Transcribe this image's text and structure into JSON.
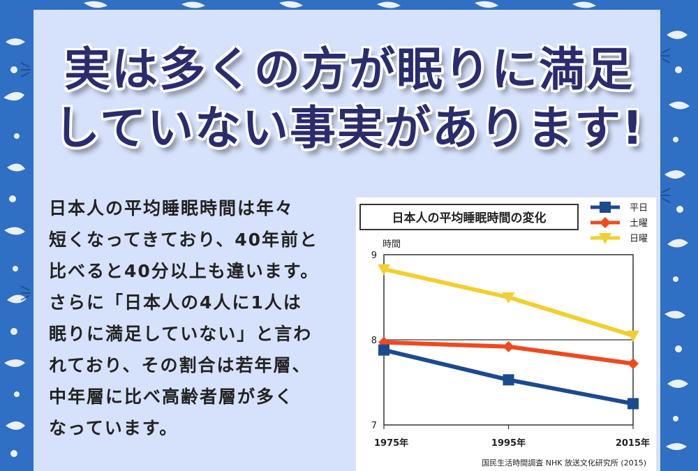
{
  "headline": {
    "line1": "実は多くの方が眠りに満足",
    "line2": "していない事実があります!"
  },
  "body": {
    "lines": [
      "日本人の平均睡眠時間は年々",
      "短くなってきており、40年前と",
      "比べると40分以上も違います。",
      "さらに「日本人の4人に1人は",
      "眠りに満足していない」と言わ",
      "れており、その割合は若年層、",
      "中年層に比べ高齢者層が多く",
      "なっています。"
    ]
  },
  "chart_data": {
    "type": "line",
    "title": "日本人の平均睡眠時間の変化",
    "ylabel": "時間",
    "xlabel": "",
    "categories": [
      "1975年",
      "1995年",
      "2015年"
    ],
    "ylim": [
      7,
      9
    ],
    "yticks": [
      "7",
      "8",
      "9"
    ],
    "grid": false,
    "legend_position": "top-right",
    "source": "国民生活時間調査 NHK 放送文化研究所 (2015)",
    "series": [
      {
        "name": "平日",
        "values": [
          7.88,
          7.53,
          7.25
        ],
        "color": "#1b4a8f",
        "marker": "square"
      },
      {
        "name": "土曜",
        "values": [
          7.97,
          7.92,
          7.72
        ],
        "color": "#ee4a1f",
        "marker": "diamond"
      },
      {
        "name": "日曜",
        "values": [
          8.83,
          8.5,
          8.05
        ],
        "color": "#f2cf30",
        "marker": "triangle-down"
      }
    ]
  },
  "colors": {
    "background_blue": "#2f6fc4",
    "panel": "#d6e2fb",
    "headline": "#2a2c6e"
  }
}
